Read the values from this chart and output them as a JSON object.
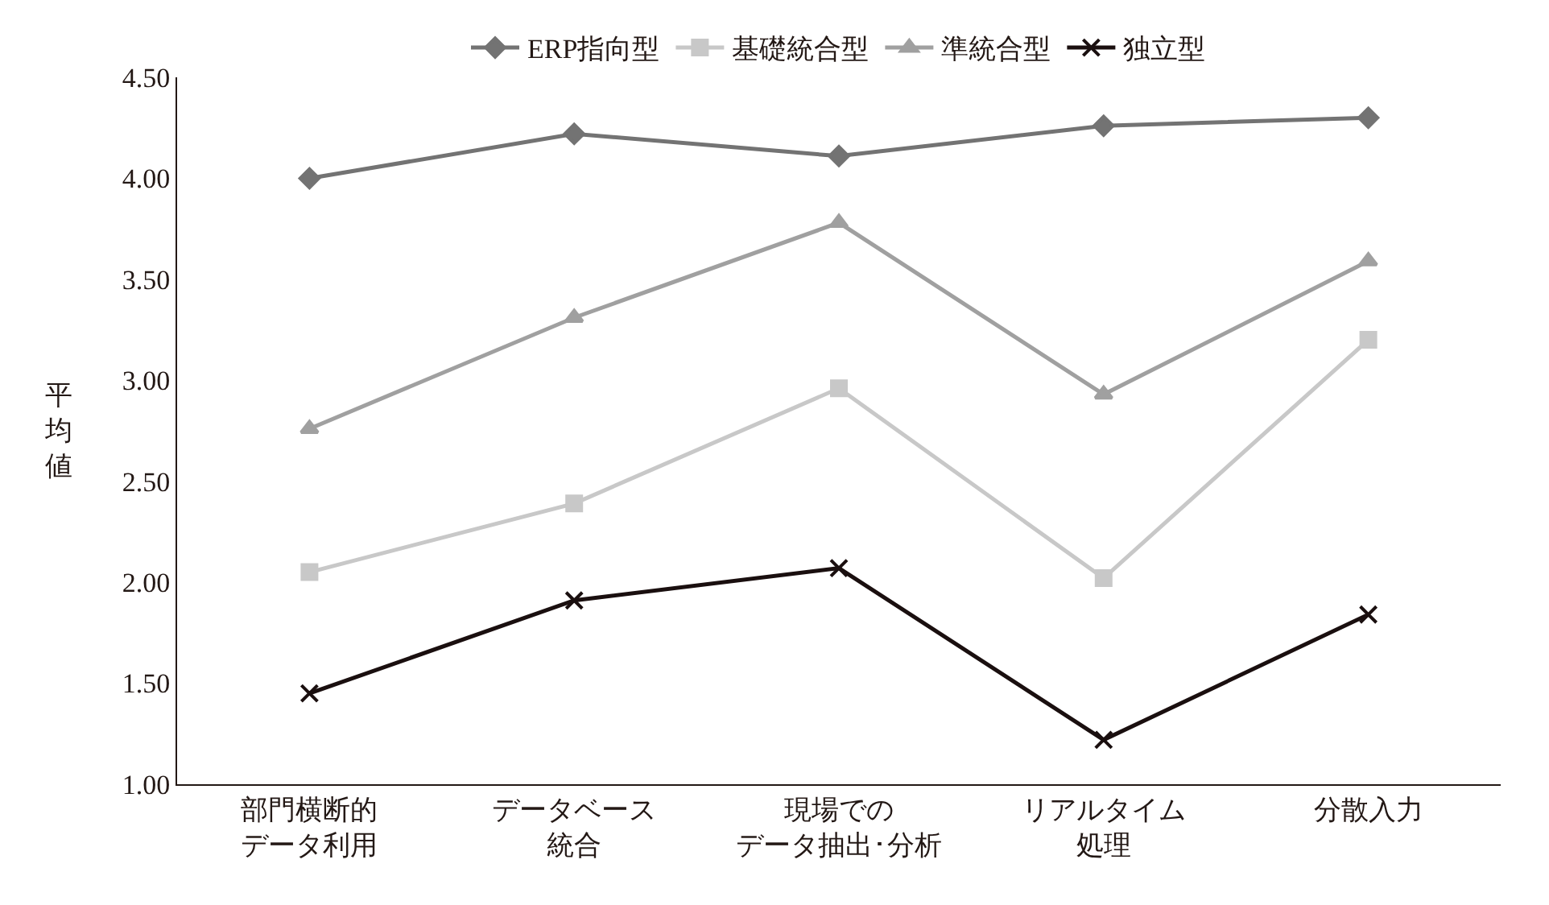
{
  "chart_data": {
    "type": "line",
    "ylabel": "平均値",
    "categories": [
      "部門横断的データ利用",
      "データベース統合",
      "現場でのデータ抽出･分析",
      "リアルタイム処理",
      "分散入力"
    ],
    "series": [
      {
        "name": "ERP指向型",
        "color": "#737373",
        "marker": "diamond",
        "values": [
          4.0,
          4.22,
          4.11,
          4.26,
          4.3
        ]
      },
      {
        "name": "基礎統合型",
        "color": "#c8c8c8",
        "marker": "square",
        "values": [
          2.05,
          2.39,
          2.96,
          2.02,
          3.2
        ]
      },
      {
        "name": "準統合型",
        "color": "#a0a0a0",
        "marker": "triangle",
        "values": [
          2.76,
          3.31,
          3.78,
          2.93,
          3.59
        ]
      },
      {
        "name": "独立型",
        "color": "#1a0f0f",
        "marker": "cross",
        "values": [
          1.45,
          1.91,
          2.07,
          1.22,
          1.84
        ]
      }
    ],
    "ylim": [
      1.0,
      4.5
    ],
    "yticks": [
      {
        "value": 1.0,
        "label": "1.00"
      },
      {
        "value": 1.5,
        "label": "1.50"
      },
      {
        "value": 2.0,
        "label": "2.00"
      },
      {
        "value": 2.5,
        "label": "2.50"
      },
      {
        "value": 3.0,
        "label": "3.00"
      },
      {
        "value": 3.5,
        "label": "3.50"
      },
      {
        "value": 4.0,
        "label": "4.00"
      },
      {
        "value": 4.5,
        "label": "4.50"
      }
    ],
    "grid": false,
    "legend": "top",
    "line_style": "solid"
  }
}
